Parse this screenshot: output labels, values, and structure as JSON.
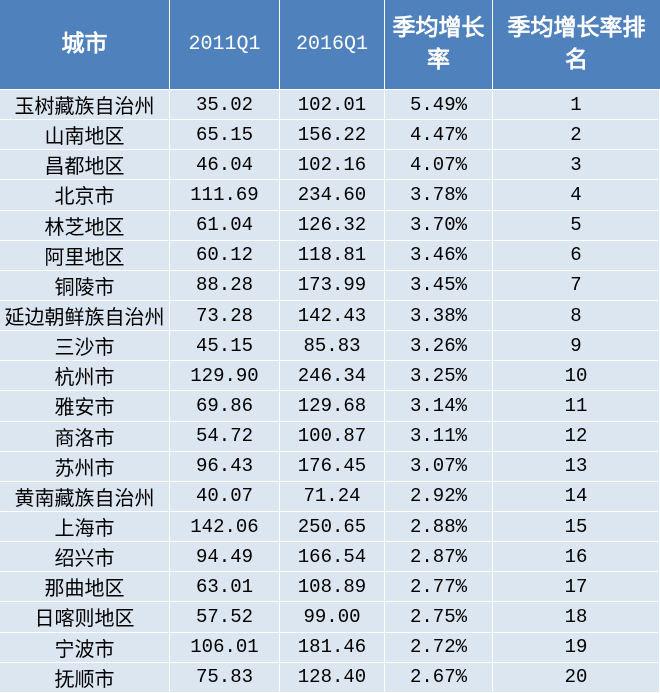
{
  "colors": {
    "header_bg": "#4f81bd",
    "header_text": "#ffffff",
    "row_bg": "#dce6f1",
    "grid": "#ffffff"
  },
  "chart_data": {
    "type": "table",
    "columns": [
      "城市",
      "2011Q1",
      "2016Q1",
      "季均增长率",
      "季均增长率排名"
    ],
    "rows": [
      [
        "玉树藏族自治州",
        "35.02",
        "102.01",
        "5.49%",
        "1"
      ],
      [
        "山南地区",
        "65.15",
        "156.22",
        "4.47%",
        "2"
      ],
      [
        "昌都地区",
        "46.04",
        "102.16",
        "4.07%",
        "3"
      ],
      [
        "北京市",
        "111.69",
        "234.60",
        "3.78%",
        "4"
      ],
      [
        "林芝地区",
        "61.04",
        "126.32",
        "3.70%",
        "5"
      ],
      [
        "阿里地区",
        "60.12",
        "118.81",
        "3.46%",
        "6"
      ],
      [
        "铜陵市",
        "88.28",
        "173.99",
        "3.45%",
        "7"
      ],
      [
        "延边朝鲜族自治州",
        "73.28",
        "142.43",
        "3.38%",
        "8"
      ],
      [
        "三沙市",
        "45.15",
        "85.83",
        "3.26%",
        "9"
      ],
      [
        "杭州市",
        "129.90",
        "246.34",
        "3.25%",
        "10"
      ],
      [
        "雅安市",
        "69.86",
        "129.68",
        "3.14%",
        "11"
      ],
      [
        "商洛市",
        "54.72",
        "100.87",
        "3.11%",
        "12"
      ],
      [
        "苏州市",
        "96.43",
        "176.45",
        "3.07%",
        "13"
      ],
      [
        "黄南藏族自治州",
        "40.07",
        "71.24",
        "2.92%",
        "14"
      ],
      [
        "上海市",
        "142.06",
        "250.65",
        "2.88%",
        "15"
      ],
      [
        "绍兴市",
        "94.49",
        "166.54",
        "2.87%",
        "16"
      ],
      [
        "那曲地区",
        "63.01",
        "108.89",
        "2.77%",
        "17"
      ],
      [
        "日喀则地区",
        "57.52",
        "99.00",
        "2.75%",
        "18"
      ],
      [
        "宁波市",
        "106.01",
        "181.46",
        "2.72%",
        "19"
      ],
      [
        "抚顺市",
        "75.83",
        "128.40",
        "2.67%",
        "20"
      ]
    ]
  }
}
